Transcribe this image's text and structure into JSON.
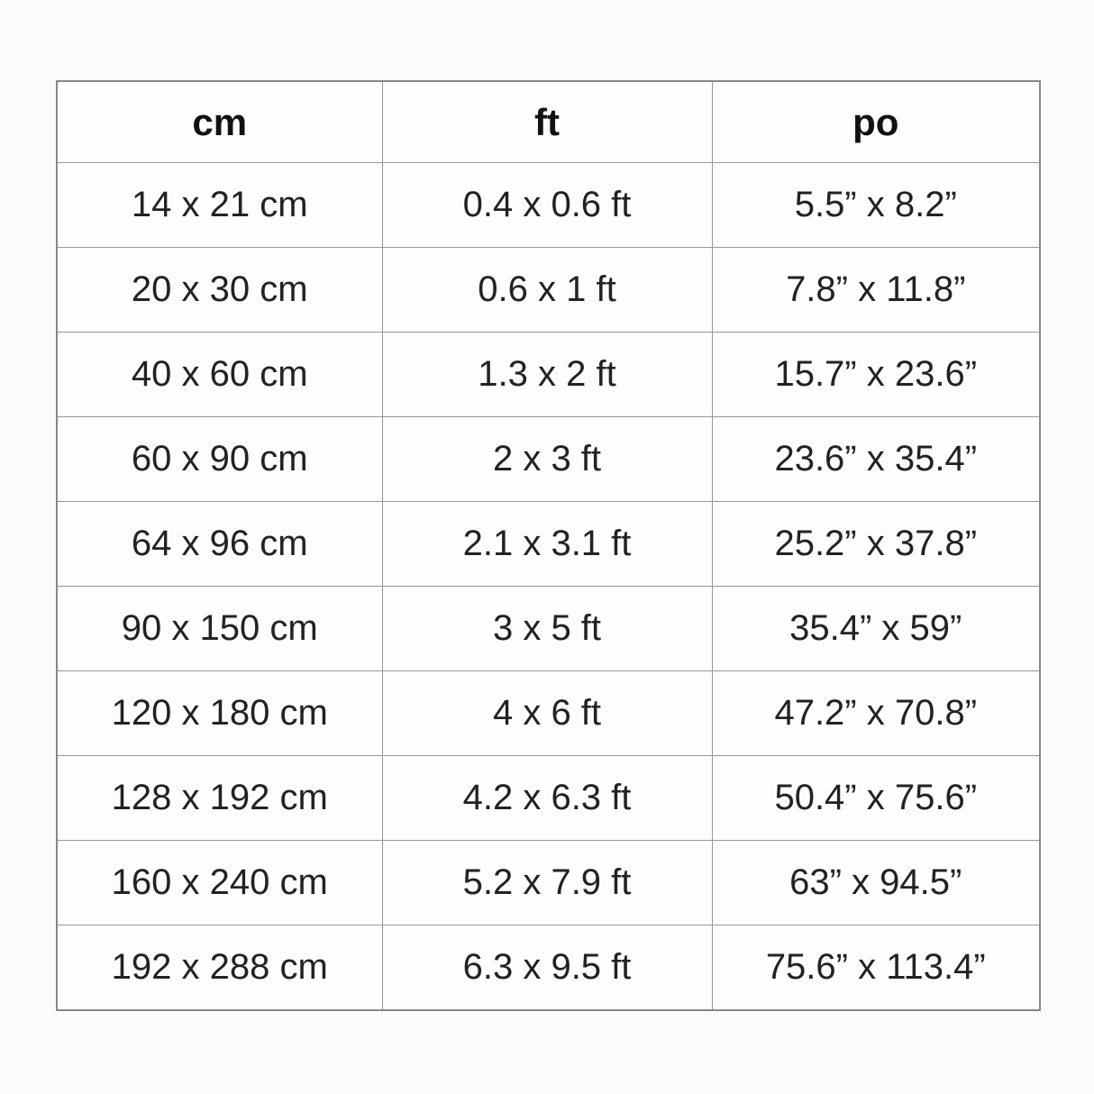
{
  "table": {
    "columns": [
      {
        "label": "cm"
      },
      {
        "label": "ft"
      },
      {
        "label": "po"
      }
    ],
    "rows": [
      {
        "cm": "14 x 21 cm",
        "ft": "0.4 x 0.6 ft",
        "po": "5.5” x 8.2”"
      },
      {
        "cm": "20 x 30 cm",
        "ft": "0.6 x 1 ft",
        "po": "7.8” x 11.8”"
      },
      {
        "cm": "40 x 60 cm",
        "ft": "1.3 x 2 ft",
        "po": "15.7” x 23.6”"
      },
      {
        "cm": "60 x 90 cm",
        "ft": "2 x 3 ft",
        "po": "23.6” x 35.4”"
      },
      {
        "cm": "64 x 96 cm",
        "ft": "2.1 x 3.1 ft",
        "po": "25.2” x 37.8”"
      },
      {
        "cm": "90 x 150 cm",
        "ft": "3 x 5 ft",
        "po": "35.4” x 59”"
      },
      {
        "cm": "120 x 180 cm",
        "ft": "4 x 6 ft",
        "po": "47.2” x 70.8”"
      },
      {
        "cm": "128 x 192 cm",
        "ft": "4.2 x 6.3 ft",
        "po": "50.4” x 75.6”"
      },
      {
        "cm": "160 x 240 cm",
        "ft": "5.2 x 7.9 ft",
        "po": "63” x 94.5”"
      },
      {
        "cm": "192 x 288 cm",
        "ft": "6.3 x 9.5 ft",
        "po": "75.6” x 113.4”"
      }
    ]
  },
  "colors": {
    "page_background": "#fbfbfb",
    "cell_background": "#fdfdfd",
    "grid_line": "#979797",
    "outer_border": "#878787",
    "text": "#222222",
    "header_text": "#111111"
  }
}
